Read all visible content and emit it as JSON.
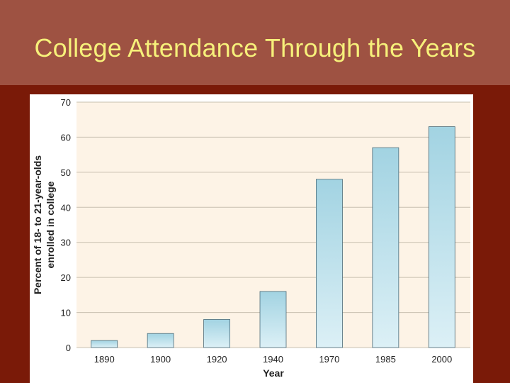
{
  "slide": {
    "title": "College Attendance Through the Years"
  },
  "colors": {
    "title_bg": "#9e5242",
    "title_text": "#f6f07a",
    "slide_bg": "#7a1a08",
    "plot_bg": "#fdf3e6",
    "bar_top": "#a2d3e2",
    "bar_bottom": "#dcf0f6",
    "bar_stroke": "#4a6a78",
    "grid": "#c8c0b0"
  },
  "chart_data": {
    "type": "bar",
    "categories": [
      "1890",
      "1900",
      "1920",
      "1940",
      "1970",
      "1985",
      "2000"
    ],
    "values": [
      2,
      4,
      8,
      16,
      48,
      57,
      63
    ],
    "title": "",
    "xlabel": "Year",
    "ylabel_lines": [
      "Percent of 18- to 21-year-olds",
      "enrolled in college"
    ],
    "ylim": [
      0,
      70
    ],
    "yticks": [
      0,
      10,
      20,
      30,
      40,
      50,
      60,
      70
    ],
    "grid": true
  }
}
